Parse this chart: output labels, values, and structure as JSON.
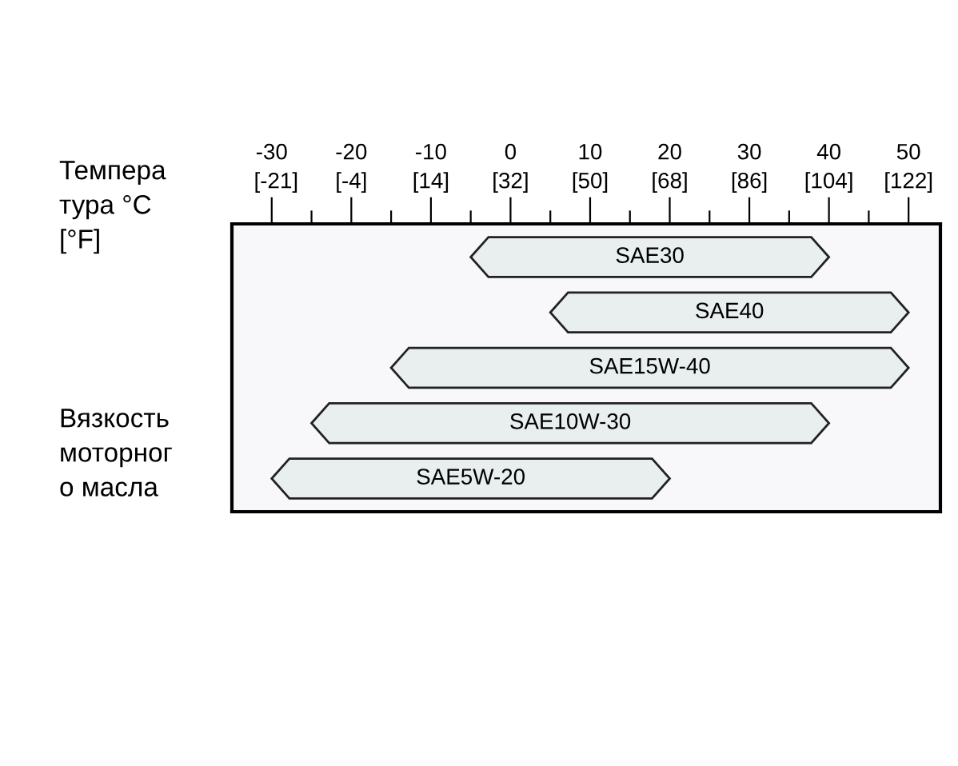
{
  "chart_data": {
    "type": "bar",
    "orientation": "horizontal",
    "xlabel": "Темпера\nтура °C\n[°F]",
    "ylabel": "Вязкость\nмоторног\nо масла",
    "categories": [
      "SAE30",
      "SAE40",
      "SAE15W-40",
      "SAE10W-30",
      "SAE5W-20"
    ],
    "base": [
      -5,
      5,
      -15,
      -25,
      -30
    ],
    "values": [
      45,
      45,
      65,
      65,
      50
    ],
    "color": "#e8efee",
    "xlim": [
      -35,
      54
    ],
    "xticks": [
      -30,
      {
        "value": -25,
        "label": null
      },
      -20,
      {
        "value": -15,
        "label": null
      },
      -10,
      {
        "value": -5,
        "label": null
      },
      0,
      {
        "value": 5,
        "label": null
      },
      10,
      {
        "value": 15,
        "label": null
      },
      20,
      {
        "value": 25,
        "label": null
      },
      30,
      {
        "value": 35,
        "label": null
      },
      40,
      {
        "value": 45,
        "label": null
      },
      50
    ],
    "x2lim": [
      -31,
      129.2
    ],
    "x2ticks": [
      {
        "value": -21,
        "label": "[-21]"
      },
      {
        "value": -4,
        "label": "[-4]"
      },
      {
        "value": 14,
        "label": "[14]"
      },
      {
        "value": 32,
        "label": "[32]"
      },
      {
        "value": 50,
        "label": "[50]"
      },
      {
        "value": 68,
        "label": "[68]"
      },
      {
        "value": 86,
        "label": "[86]"
      },
      {
        "value": 104,
        "label": "[104]"
      },
      {
        "value": 122,
        "label": "[122]"
      }
    ],
    "tick_labels": "x"
  }
}
